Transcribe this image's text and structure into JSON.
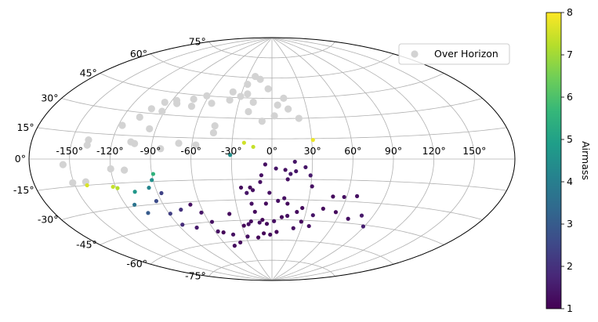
{
  "chart_data": {
    "type": "scatter",
    "projection": "aitoff",
    "grid": true,
    "legend_placement": "top-right",
    "legend": [
      {
        "label": "Over Horizon",
        "color": "#d3d3d3"
      }
    ],
    "lon_ticks": [
      "-150°",
      "-120°",
      "-90°",
      "-60°",
      "-30°",
      "0°",
      "30°",
      "60°",
      "90°",
      "120°",
      "150°"
    ],
    "lat_ticks": [
      "-75°",
      "-60°",
      "-45°",
      "-30°",
      "-15°",
      "0°",
      "15°",
      "30°",
      "45°",
      "60°",
      "75°"
    ],
    "colorbar": {
      "label": "Airmass",
      "range": [
        1,
        8
      ],
      "ticks": [
        "1",
        "2",
        "3",
        "4",
        "5",
        "6",
        "7",
        "8"
      ],
      "colormap": [
        "#440154",
        "#482878",
        "#3e4a89",
        "#31688e",
        "#26828e",
        "#1f9e89",
        "#35b779",
        "#6ece58",
        "#b5de2b",
        "#fde725"
      ]
    },
    "series": [
      {
        "name": "Over Horizon",
        "color": "#d3d3d3",
        "points": [
          [
            -155,
            -3
          ],
          [
            -138,
            8
          ],
          [
            -138,
            11
          ],
          [
            -151,
            -13
          ],
          [
            -141,
            -13
          ],
          [
            -110,
            -7
          ],
          [
            -120,
            -6
          ],
          [
            -117,
            21
          ],
          [
            -107,
            27
          ],
          [
            -102,
            33
          ],
          [
            -92,
            32
          ],
          [
            -95,
            20
          ],
          [
            -103,
            10
          ],
          [
            -106,
            11
          ],
          [
            -95,
            38
          ],
          [
            -86,
            40
          ],
          [
            -84,
            38
          ],
          [
            -72,
            42
          ],
          [
            -62,
            45
          ],
          [
            -54,
            40
          ],
          [
            -39,
            49
          ],
          [
            -39,
            43
          ],
          [
            -27,
            55
          ],
          [
            -24,
            48
          ],
          [
            -21,
            61
          ],
          [
            -14,
            59
          ],
          [
            -17,
            42
          ],
          [
            -20,
            35
          ],
          [
            -4,
            52
          ],
          [
            -8,
            28
          ],
          [
            2,
            32
          ],
          [
            5,
            40
          ],
          [
            11,
            45
          ],
          [
            14,
            37
          ],
          [
            22,
            30
          ],
          [
            -45,
            19
          ],
          [
            -45,
            24
          ],
          [
            -57,
            10
          ],
          [
            -70,
            11
          ],
          [
            -83,
            7
          ],
          [
            -70,
            37
          ],
          [
            -30,
            46
          ]
        ]
      },
      {
        "name": "",
        "colored_by": "airmass",
        "points": [
          [
            31,
            14,
            7.8
          ],
          [
            -21,
            12,
            7.5
          ],
          [
            -14,
            9,
            7.4
          ],
          [
            -31,
            3,
            4.5
          ],
          [
            -141,
            -15,
            7.6
          ],
          [
            -122,
            -17,
            7.4
          ],
          [
            -119,
            -18,
            7.2
          ],
          [
            -107,
            -21,
            4.7
          ],
          [
            -95,
            -19,
            4.2
          ],
          [
            -91,
            -14,
            4.5
          ],
          [
            -89,
            -10,
            5.5
          ],
          [
            -113,
            -29,
            3.7
          ],
          [
            -107,
            -35,
            3.0
          ],
          [
            -87,
            -23,
            2.4
          ],
          [
            -94,
            -28,
            2.6
          ],
          [
            -89,
            -37,
            2.3
          ],
          [
            -78,
            -35,
            2.0
          ],
          [
            -68,
            -32,
            1.3
          ],
          [
            -62,
            -38,
            1.4
          ],
          [
            -57,
            -45,
            1.3
          ],
          [
            -75,
            -48,
            1.5
          ],
          [
            -86,
            -45,
            1.9
          ],
          [
            -57,
            -52,
            1.3
          ],
          [
            -52,
            -53,
            1.1
          ],
          [
            -43,
            -55,
            1.3
          ],
          [
            -38,
            -40,
            1.2
          ],
          [
            -50,
            -63,
            1.2
          ],
          [
            -40,
            -61,
            1.2
          ],
          [
            -28,
            -57,
            1.3
          ],
          [
            -28,
            -49,
            1.1
          ],
          [
            -20,
            -46,
            1.2
          ],
          [
            -23,
            -48,
            1.3
          ],
          [
            -16,
            -58,
            1.1
          ],
          [
            -9,
            -55,
            1.1
          ],
          [
            -15,
            -39,
            1.2
          ],
          [
            -17,
            -33,
            1.3
          ],
          [
            -24,
            -21,
            1.2
          ],
          [
            -20,
            -25,
            1.4
          ],
          [
            -17,
            -21,
            1.2
          ],
          [
            -15,
            -23,
            1.3
          ],
          [
            -9,
            -17,
            1.3
          ],
          [
            -8,
            -12,
            1.3
          ],
          [
            -5,
            -4,
            1.3
          ],
          [
            3,
            -7,
            1.4
          ],
          [
            14,
            -11,
            1.5
          ],
          [
            10,
            -8,
            1.3
          ],
          [
            12,
            -15,
            1.3
          ],
          [
            18,
            -9,
            1.4
          ],
          [
            17,
            -2,
            1.4
          ],
          [
            25,
            -6,
            1.4
          ],
          [
            29,
            -12,
            1.5
          ],
          [
            31,
            -20,
            1.3
          ],
          [
            26,
            -36,
            1.2
          ],
          [
            22,
            -39,
            1.2
          ],
          [
            14,
            -42,
            1.3
          ],
          [
            9,
            -43,
            1.2
          ],
          [
            2,
            -46,
            1.3
          ],
          [
            -5,
            -48,
            1.2
          ],
          [
            5,
            -31,
            1.3
          ],
          [
            -5,
            -33,
            1.2
          ],
          [
            -9,
            -45,
            1.1
          ],
          [
            -2,
            -56,
            1.2
          ],
          [
            5,
            -54,
            1.1
          ],
          [
            10,
            -29,
            1.3
          ],
          [
            13,
            -33,
            1.2
          ],
          [
            22,
            -51,
            1.3
          ],
          [
            28,
            -46,
            1.2
          ],
          [
            37,
            -41,
            1.4
          ],
          [
            37,
            -49,
            1.3
          ],
          [
            44,
            -36,
            1.2
          ],
          [
            56,
            -38,
            1.2
          ],
          [
            70,
            -42,
            1.3
          ],
          [
            80,
            -39,
            1.5
          ],
          [
            49,
            -27,
            1.2
          ],
          [
            58,
            -27,
            1.3
          ],
          [
            68,
            -26,
            1.3
          ],
          [
            89,
            -46,
            1.6
          ],
          [
            -2,
            -25,
            1.3
          ],
          [
            -12,
            -47,
            1.3
          ]
        ]
      }
    ]
  }
}
